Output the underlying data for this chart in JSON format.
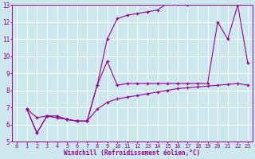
{
  "xlabel": "Windchill (Refroidissement éolien,°C)",
  "bg_color": "#cce8ee",
  "grid_color": "#ffffff",
  "line_color": "#990099",
  "xlim": [
    -0.5,
    23.5
  ],
  "ylim": [
    5,
    13
  ],
  "xticks": [
    0,
    1,
    2,
    3,
    4,
    5,
    6,
    7,
    8,
    9,
    10,
    11,
    12,
    13,
    14,
    15,
    16,
    17,
    18,
    19,
    20,
    21,
    22,
    23
  ],
  "yticks": [
    5,
    6,
    7,
    8,
    9,
    10,
    11,
    12,
    13
  ],
  "series1_x": [
    1,
    2,
    3,
    4,
    5,
    6,
    7,
    8,
    9,
    10,
    11,
    12,
    13,
    14,
    15,
    16,
    17,
    22
  ],
  "series1_y": [
    6.9,
    6.4,
    6.5,
    6.5,
    6.3,
    6.2,
    6.2,
    8.3,
    11.0,
    12.2,
    12.4,
    12.5,
    12.6,
    12.7,
    13.1,
    13.05,
    13.0,
    13.0
  ],
  "series2_x": [
    1,
    2,
    3,
    4,
    5,
    6,
    7,
    8,
    9,
    10,
    11,
    12,
    13,
    14,
    15,
    16,
    17,
    18,
    19,
    20,
    21,
    22,
    23
  ],
  "series2_y": [
    6.9,
    5.5,
    6.5,
    6.4,
    6.3,
    6.2,
    6.2,
    6.9,
    7.3,
    7.5,
    7.6,
    7.7,
    7.8,
    7.9,
    8.0,
    8.1,
    8.15,
    8.2,
    8.25,
    8.3,
    8.35,
    8.4,
    8.3
  ],
  "series3_x": [
    1,
    2,
    3,
    4,
    5,
    6,
    7,
    8,
    9,
    10,
    11,
    12,
    13,
    14,
    15,
    16,
    17,
    18,
    19,
    20,
    21,
    22,
    23
  ],
  "series3_y": [
    6.9,
    5.5,
    6.5,
    6.4,
    6.3,
    6.2,
    6.2,
    8.3,
    9.7,
    8.3,
    8.4,
    8.4,
    8.4,
    8.4,
    8.4,
    8.4,
    8.4,
    8.4,
    8.4,
    12.0,
    11.0,
    13.0,
    9.6
  ]
}
